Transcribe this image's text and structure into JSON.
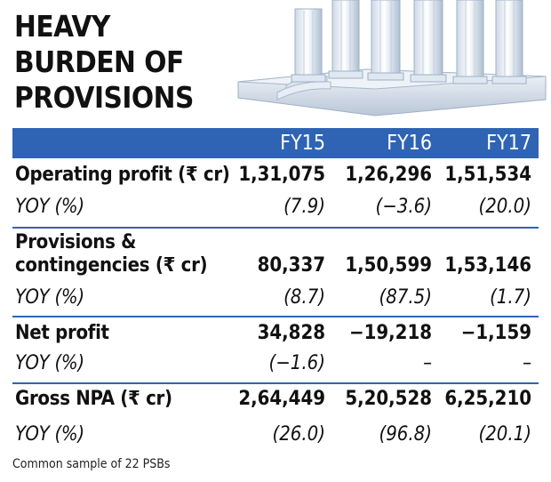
{
  "title": {
    "lines": [
      "HEAVY",
      "BURDEN OF",
      "PROVISIONS"
    ]
  },
  "table": {
    "columns": [
      "FY15",
      "FY16",
      "FY17"
    ],
    "sections": [
      {
        "label": "Operating profit  (₹ cr)",
        "values": [
          "1,31,075",
          "1,26,296",
          "1,51,534"
        ],
        "yoy_label": "YOY (%)",
        "yoy": [
          "(7.9)",
          "(−3.6)",
          "(20.0)"
        ]
      },
      {
        "label_line1": "Provisions &",
        "label_line2": "contingencies  (₹ cr)",
        "values": [
          "80,337",
          "1,50,599",
          "1,53,146"
        ],
        "yoy_label": "YOY (%)",
        "yoy": [
          "(8.7)",
          "(87.5)",
          "(1.7)"
        ]
      },
      {
        "label": "Net profit",
        "values": [
          "34,828",
          "−19,218",
          "−1,159"
        ],
        "yoy_label": "YOY (%)",
        "yoy": [
          "(−1.6)",
          "–",
          "–"
        ]
      },
      {
        "label": "Gross NPA (₹ cr)",
        "values": [
          "2,64,449",
          "5,20,528",
          "6,25,210"
        ],
        "yoy_label": "YOY (%)",
        "yoy": [
          "(26.0)",
          "(96.8)",
          "(20.1)"
        ]
      }
    ]
  },
  "footnote": "Common sample of 22 PSBs",
  "colors": {
    "header_bar": "#2f64b4",
    "text": "#111111"
  },
  "icons": {
    "illustration": "bank-pillars-illustration"
  }
}
